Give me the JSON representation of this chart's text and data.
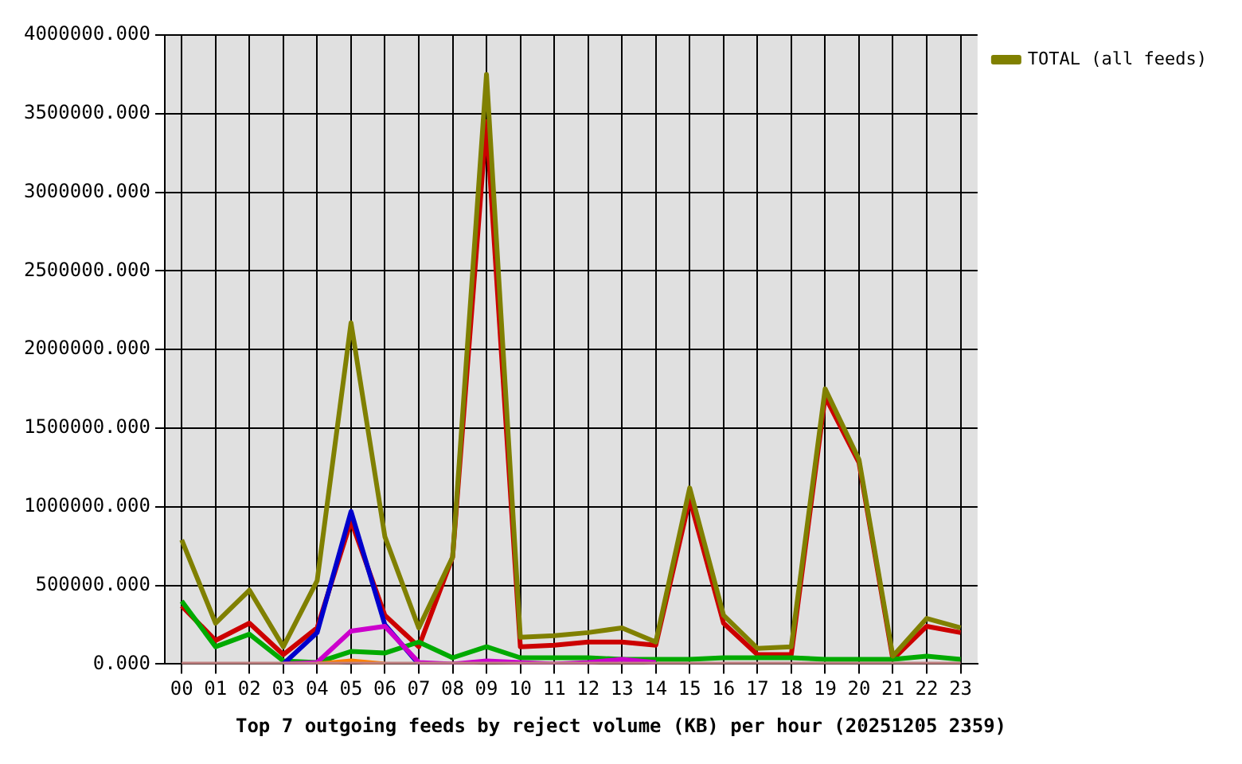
{
  "chart_data": {
    "type": "line",
    "title": "Top 7 outgoing feeds by reject volume (KB) per hour (20251205 2359)",
    "categories": [
      "00",
      "01",
      "02",
      "03",
      "04",
      "05",
      "06",
      "07",
      "08",
      "09",
      "10",
      "11",
      "12",
      "13",
      "14",
      "15",
      "16",
      "17",
      "18",
      "19",
      "20",
      "21",
      "22",
      "23"
    ],
    "series": [
      {
        "color": "#cc0000",
        "values": [
          370000,
          150000,
          260000,
          60000,
          230000,
          910000,
          310000,
          110000,
          680000,
          3450000,
          110000,
          120000,
          140000,
          140000,
          120000,
          1050000,
          260000,
          60000,
          60000,
          1700000,
          1280000,
          30000,
          240000,
          200000
        ]
      },
      {
        "color": "#00aa00",
        "values": [
          400000,
          110000,
          190000,
          20000,
          10000,
          80000,
          70000,
          140000,
          40000,
          110000,
          40000,
          40000,
          40000,
          30000,
          30000,
          30000,
          40000,
          40000,
          40000,
          30000,
          30000,
          30000,
          50000,
          30000
        ]
      },
      {
        "color": "#0000cc",
        "values": [
          null,
          null,
          null,
          0,
          200000,
          970000,
          250000,
          0,
          null,
          null,
          null,
          null,
          null,
          null,
          null,
          null,
          null,
          null,
          null,
          null,
          null,
          null,
          null,
          null
        ]
      },
      {
        "color": "#cc00cc",
        "values": [
          null,
          null,
          null,
          0,
          10000,
          210000,
          240000,
          10000,
          0,
          20000,
          10000,
          0,
          10000,
          30000,
          10000,
          null,
          null,
          null,
          null,
          null,
          null,
          null,
          null,
          null
        ]
      },
      {
        "color": "#ff8000",
        "values": [
          null,
          null,
          null,
          null,
          0,
          20000,
          0,
          null,
          null,
          null,
          null,
          null,
          null,
          null,
          null,
          null,
          null,
          null,
          null,
          null,
          null,
          null,
          null,
          null
        ]
      },
      {
        "color": "#c08080",
        "values": [
          0,
          0,
          0,
          0,
          0,
          0,
          0,
          0,
          0,
          0,
          0,
          0,
          0,
          0,
          0,
          0,
          0,
          0,
          0,
          0,
          0,
          0,
          0,
          0
        ]
      },
      {
        "name": "TOTAL (all feeds)",
        "color": "#808000",
        "values": [
          790000,
          260000,
          470000,
          110000,
          530000,
          2170000,
          810000,
          230000,
          680000,
          3750000,
          170000,
          180000,
          200000,
          230000,
          140000,
          1120000,
          310000,
          100000,
          110000,
          1750000,
          1300000,
          50000,
          290000,
          230000
        ]
      }
    ],
    "ylim": [
      0,
      4000000
    ],
    "yticks": [
      {
        "value": 0,
        "label": "0.000"
      },
      {
        "value": 500000,
        "label": "500000.000"
      },
      {
        "value": 1000000,
        "label": "1000000.000"
      },
      {
        "value": 1500000,
        "label": "1500000.000"
      },
      {
        "value": 2000000,
        "label": "2000000.000"
      },
      {
        "value": 2500000,
        "label": "2500000.000"
      },
      {
        "value": 3000000,
        "label": "3000000.000"
      },
      {
        "value": 3500000,
        "label": "3500000.000"
      },
      {
        "value": 4000000,
        "label": "4000000.000"
      }
    ],
    "grid": true,
    "legend": "right",
    "marker": "none",
    "line_style": "solid"
  }
}
